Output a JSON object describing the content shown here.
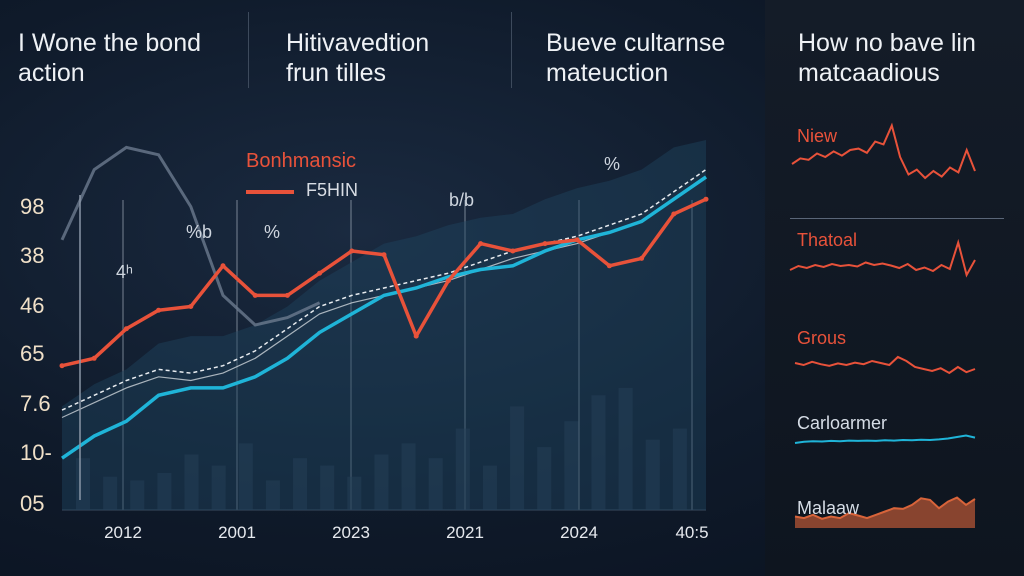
{
  "headers": [
    {
      "text": "I Wone the bond\naction"
    },
    {
      "text": "Hitivavedtion\nfrun tilles"
    },
    {
      "text": "Bueve cultarnse\nmateuction"
    },
    {
      "text": "How no bave lin\nmatcaadious"
    }
  ],
  "legend": {
    "title": "Bonhmansic",
    "series_label": "F5HIN"
  },
  "annotations": [
    "4ʰ",
    "%b",
    "%",
    "b/b",
    "%"
  ],
  "colors": {
    "red": "#e8523a",
    "cyan": "#1fb4d8",
    "white_dashed": "#e8ecf0",
    "gray": "#6b7a8e",
    "orange": "#d8643a"
  },
  "chart_data": [
    {
      "type": "line",
      "title": "",
      "y_tick_labels": [
        "98",
        "38",
        "46",
        "65",
        "7.6",
        "10-",
        "05"
      ],
      "x_tick_labels": [
        "2012",
        "2001",
        "2023",
        "2021",
        "2024",
        "40:5"
      ],
      "grid": true,
      "series": [
        {
          "name": "F5HIN",
          "color": "#e8523a",
          "values": [
            39,
            41,
            49,
            54,
            55,
            66,
            58,
            58,
            64,
            70,
            69,
            47,
            62,
            72,
            70,
            72,
            73,
            66,
            68,
            80,
            84
          ]
        },
        {
          "color": "#1fb4d8",
          "values": [
            14,
            20,
            24,
            31,
            33,
            33,
            36,
            41,
            48,
            53,
            58,
            60,
            63,
            65,
            66,
            70,
            73,
            75,
            78,
            84,
            90
          ]
        },
        {
          "color": "#e8ecf0",
          "values": [
            27,
            31,
            35,
            38,
            37,
            39,
            43,
            49,
            55,
            58,
            60,
            62,
            64,
            67,
            70,
            72,
            74,
            77,
            80,
            86,
            92
          ]
        },
        {
          "color": "#6b7a8e",
          "values": [
            73,
            92,
            98,
            96,
            82,
            58,
            50,
            52,
            56
          ]
        }
      ],
      "bar_values": [
        14,
        9,
        8,
        10,
        15,
        12,
        18,
        8,
        14,
        12,
        9,
        15,
        18,
        14,
        22,
        12,
        28,
        17,
        24,
        31,
        33,
        19,
        22
      ]
    },
    {
      "type": "line",
      "panel_label": "Niew",
      "color": "#e8523a",
      "values": [
        40,
        48,
        46,
        55,
        50,
        58,
        52,
        60,
        62,
        56,
        72,
        68,
        95,
        50,
        25,
        32,
        20,
        30,
        22,
        35,
        28,
        60,
        30
      ]
    },
    {
      "type": "line",
      "panel_label": "Thatoal",
      "color": "#e8523a",
      "values": [
        40,
        48,
        44,
        50,
        46,
        52,
        48,
        50,
        47,
        55,
        50,
        53,
        49,
        44,
        52,
        40,
        45,
        38,
        50,
        42,
        95,
        30,
        60
      ]
    },
    {
      "type": "line",
      "panel_label": "Grous",
      "color": "#e8523a",
      "values": [
        55,
        50,
        58,
        52,
        48,
        54,
        50,
        56,
        52,
        60,
        55,
        50,
        70,
        60,
        45,
        40,
        35,
        42,
        30,
        45,
        32,
        40
      ]
    },
    {
      "type": "line",
      "panel_label": "Carloarmer",
      "color": "#1fb4d8",
      "values": [
        40,
        44,
        46,
        45,
        47,
        46,
        48,
        47,
        48,
        47,
        49,
        48,
        50,
        49,
        51,
        50,
        52,
        55,
        60,
        65,
        58
      ]
    },
    {
      "type": "area",
      "panel_label": "Malaaw",
      "color": "#d8643a",
      "values": [
        35,
        30,
        40,
        28,
        35,
        30,
        45,
        38,
        30,
        40,
        50,
        60,
        58,
        70,
        90,
        85,
        60,
        80,
        92,
        70,
        88
      ]
    }
  ]
}
